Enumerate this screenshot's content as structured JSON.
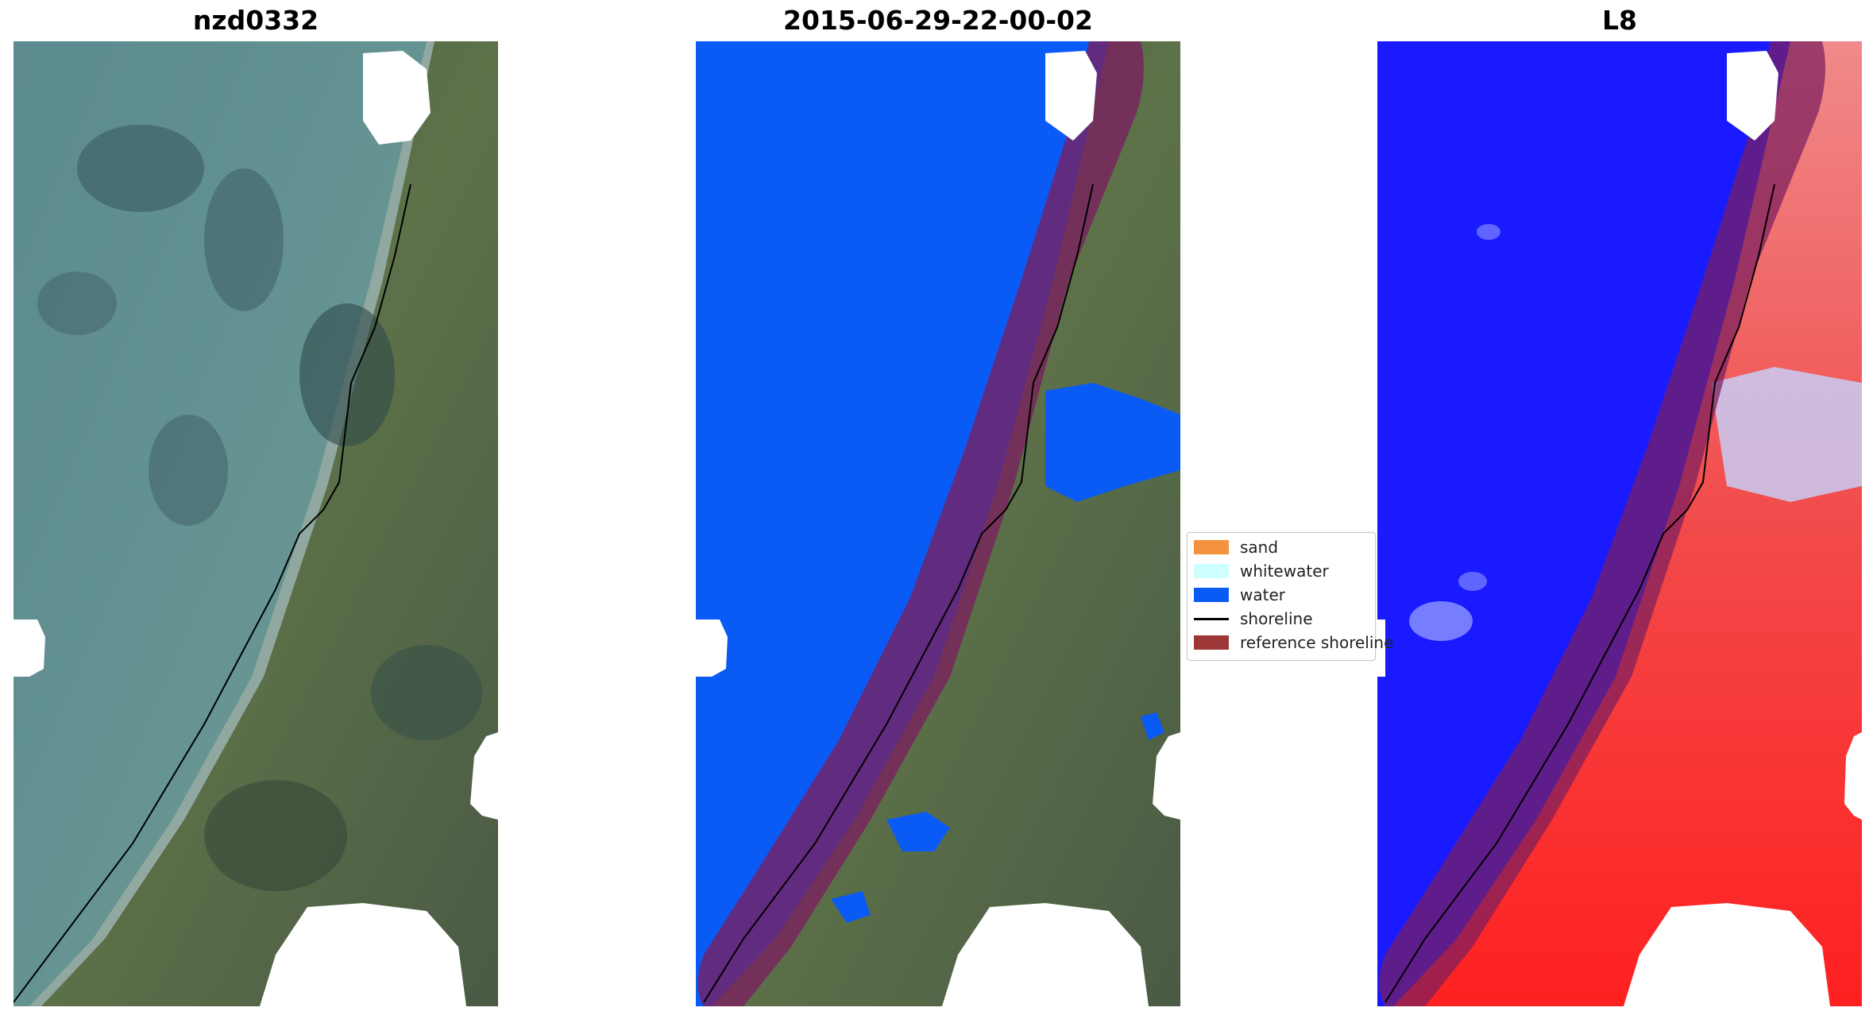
{
  "panels": [
    {
      "title": "nzd0332"
    },
    {
      "title": "2015-06-29-22-00-02"
    },
    {
      "title": "L8"
    }
  ],
  "legend": {
    "items": [
      {
        "label": "sand",
        "color": "#f5923e",
        "kind": "patch"
      },
      {
        "label": "whitewater",
        "color": "#ccfffe",
        "kind": "patch"
      },
      {
        "label": "water",
        "color": "#0a5af5",
        "kind": "patch"
      },
      {
        "label": "shoreline",
        "color": "#000000",
        "kind": "line"
      },
      {
        "label": "reference shoreline",
        "color": "#9e3737",
        "kind": "patch"
      }
    ]
  },
  "colors": {
    "sea_rgb": "#5f8f93",
    "land_rgb": "#55684a",
    "classified_water": "#0a5af5",
    "reference_buffer": "#7a1f5e",
    "index_blue": "#1a1aff",
    "index_red": "#ff2020",
    "cloud_mask": "#ffffff"
  }
}
